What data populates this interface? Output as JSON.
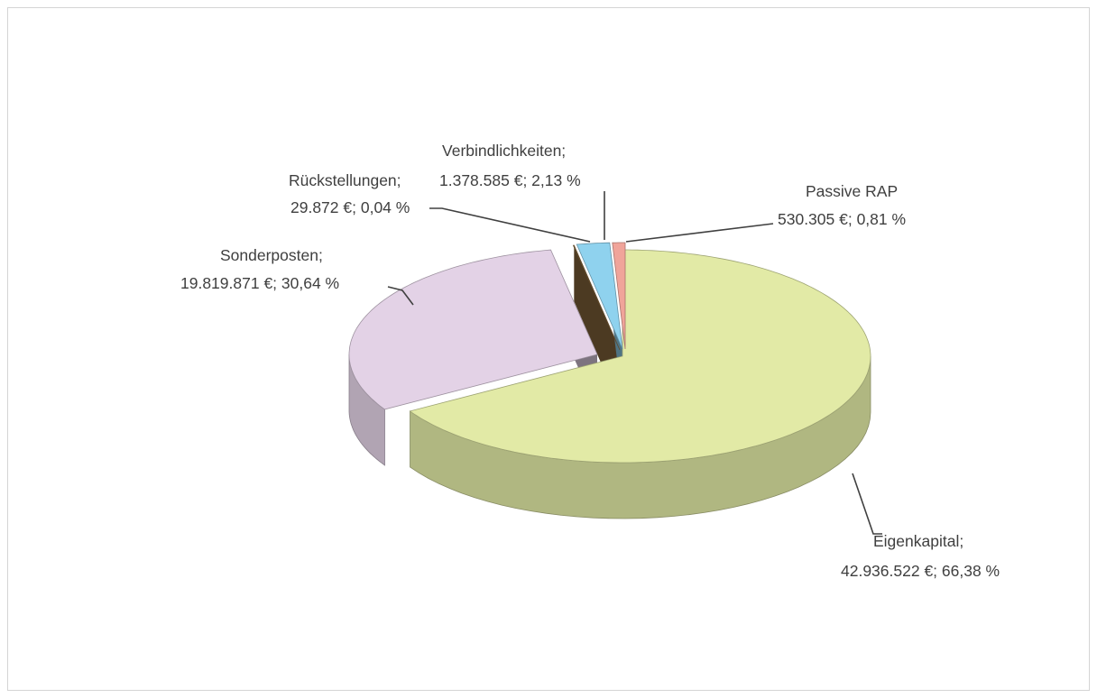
{
  "chart_data": {
    "type": "pie",
    "style": "3d-exploded",
    "slices": [
      {
        "name": "Eigenkapital",
        "value": 42936522,
        "percent": 66.38,
        "label_line1": "Eigenkapital;",
        "label_line2": "42.936.522 €; 66,38 %",
        "color": "#e2eaa6"
      },
      {
        "name": "Sonderposten",
        "value": 19819871,
        "percent": 30.64,
        "label_line1": "Sonderposten;",
        "label_line2": "19.819.871 €; 30,64 %",
        "color": "#e3d2e6"
      },
      {
        "name": "Rückstellungen",
        "value": 29872,
        "percent": 0.04,
        "label_line1": "Rückstellungen;",
        "label_line2": "29.872 €; 0,04 %",
        "color": "#8b6a3e"
      },
      {
        "name": "Verbindlichkeiten",
        "value": 1378585,
        "percent": 2.13,
        "label_line1": "Verbindlichkeiten;",
        "label_line2": "1.378.585 €; 2,13 %",
        "color": "#8fd2ee"
      },
      {
        "name": "Passive RAP",
        "value": 530305,
        "percent": 0.81,
        "label_line1": "Passive RAP",
        "label_line2": "530.305 €; 0,81 %",
        "color": "#f0a49a"
      }
    ],
    "title": "",
    "legend": "none"
  }
}
